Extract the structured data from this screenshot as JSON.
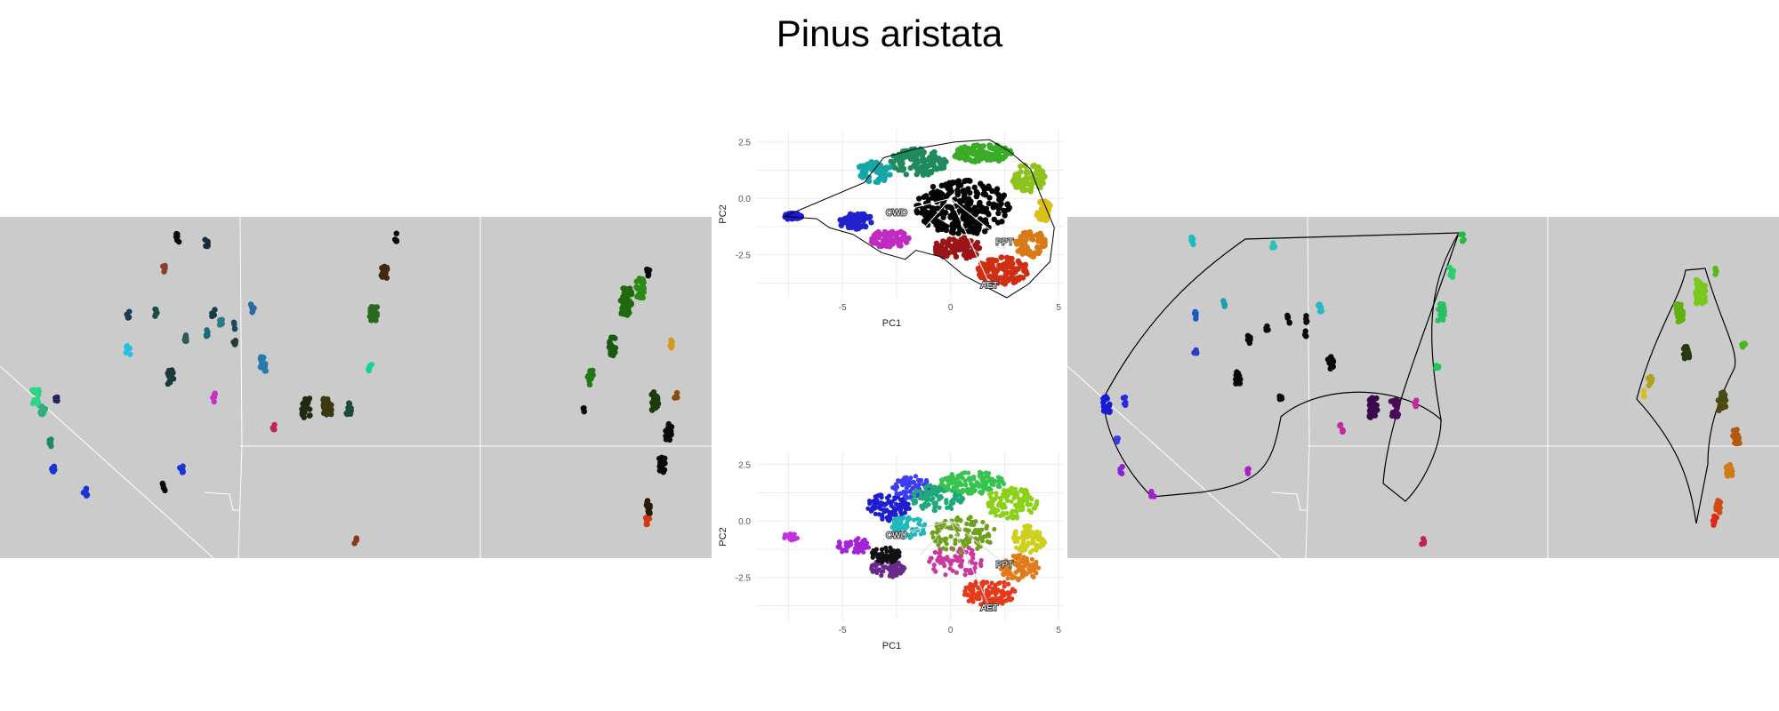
{
  "title": "Pinus aristata",
  "chart_data": [
    {
      "type": "scatter",
      "panel": "pca-biplot-top",
      "title": "",
      "xlabel": "PC1",
      "ylabel": "PC2",
      "xlim": [
        -9,
        5.2
      ],
      "ylim": [
        -4.4,
        3.0
      ],
      "x_ticks": [
        "-5",
        "0",
        "5"
      ],
      "y_ticks": [
        "2.5",
        "0.0",
        "-2.5"
      ],
      "x_tick_values": [
        -5,
        0,
        5
      ],
      "y_tick_values": [
        2.5,
        0.0,
        -2.5
      ],
      "grid": true,
      "loadings": [
        {
          "label": "CWD",
          "x": -2.5,
          "y": -0.6
        },
        {
          "label": "PPT",
          "x": 2.5,
          "y": -1.9
        },
        {
          "label": "AET",
          "x": 1.8,
          "y": -3.8
        },
        {
          "label": "",
          "x": -1.4,
          "y": -1.5
        }
      ],
      "hull_points": [
        [
          -7.7,
          -0.8
        ],
        [
          -6.2,
          -0.9
        ],
        [
          -5.6,
          -1.3
        ],
        [
          -4.5,
          -1.6
        ],
        [
          -3.2,
          -2.4
        ],
        [
          -2.1,
          -2.7
        ],
        [
          -1.6,
          -2.3
        ],
        [
          -0.4,
          -2.6
        ],
        [
          0.6,
          -3.4
        ],
        [
          1.4,
          -3.8
        ],
        [
          2.6,
          -4.4
        ],
        [
          3.6,
          -3.8
        ],
        [
          4.6,
          -2.8
        ],
        [
          4.8,
          -1.3
        ],
        [
          4.1,
          0.3
        ],
        [
          3.7,
          1.3
        ],
        [
          2.7,
          2.1
        ],
        [
          1.8,
          2.6
        ],
        [
          0.2,
          2.5
        ],
        [
          -1.6,
          2.2
        ],
        [
          -3.1,
          1.8
        ],
        [
          -4.0,
          0.7
        ]
      ],
      "clusters": [
        {
          "cx": -7.3,
          "cy": -0.8,
          "rx": 0.4,
          "ry": 0.15,
          "color": "#1b1bd6",
          "n": 30
        },
        {
          "cx": -4.4,
          "cy": -1.0,
          "rx": 0.8,
          "ry": 0.35,
          "color": "#2222cc",
          "n": 60
        },
        {
          "cx": -2.8,
          "cy": -1.8,
          "rx": 0.9,
          "ry": 0.4,
          "color": "#c22bc2",
          "n": 60
        },
        {
          "cx": -3.5,
          "cy": 1.2,
          "rx": 0.8,
          "ry": 0.5,
          "color": "#16a6a6",
          "n": 60
        },
        {
          "cx": -1.5,
          "cy": 1.6,
          "rx": 1.3,
          "ry": 0.6,
          "color": "#1e8a5e",
          "n": 110
        },
        {
          "cx": 1.5,
          "cy": 2.0,
          "rx": 1.4,
          "ry": 0.4,
          "color": "#3bab28",
          "n": 110
        },
        {
          "cx": 3.6,
          "cy": 0.9,
          "rx": 0.8,
          "ry": 0.6,
          "color": "#8ec21e",
          "n": 70
        },
        {
          "cx": 4.3,
          "cy": -0.6,
          "rx": 0.4,
          "ry": 0.5,
          "color": "#d9c11a",
          "n": 40
        },
        {
          "cx": 3.7,
          "cy": -2.0,
          "rx": 0.7,
          "ry": 0.6,
          "color": "#d77a17",
          "n": 60
        },
        {
          "cx": 2.4,
          "cy": -3.2,
          "rx": 1.2,
          "ry": 0.6,
          "color": "#cf2e14",
          "n": 100
        },
        {
          "cx": 0.3,
          "cy": -2.2,
          "rx": 1.1,
          "ry": 0.5,
          "color": "#9a1616",
          "n": 80
        },
        {
          "cx": 0.6,
          "cy": -0.4,
          "rx": 2.2,
          "ry": 1.2,
          "color": "#050505",
          "n": 260
        }
      ]
    },
    {
      "type": "scatter",
      "panel": "pca-biplot-bottom",
      "title": "",
      "xlabel": "PC1",
      "ylabel": "PC2",
      "xlim": [
        -9,
        5.2
      ],
      "ylim": [
        -4.4,
        3.0
      ],
      "x_ticks": [
        "-5",
        "0",
        "5"
      ],
      "y_ticks": [
        "2.5",
        "0.0",
        "-2.5"
      ],
      "x_tick_values": [
        -5,
        0,
        5
      ],
      "y_tick_values": [
        2.5,
        0.0,
        -2.5
      ],
      "grid": true,
      "loadings": [
        {
          "label": "CWD",
          "x": -2.5,
          "y": -0.6
        },
        {
          "label": "PPT",
          "x": 2.5,
          "y": -1.9
        },
        {
          "label": "AET",
          "x": 1.8,
          "y": -3.8
        },
        {
          "label": "",
          "x": -1.4,
          "y": -1.5
        }
      ],
      "clusters": [
        {
          "cx": -7.4,
          "cy": -0.7,
          "rx": 0.4,
          "ry": 0.15,
          "color": "#c233e0",
          "n": 30
        },
        {
          "cx": -4.5,
          "cy": -1.1,
          "rx": 0.8,
          "ry": 0.35,
          "color": "#a324d8",
          "n": 60
        },
        {
          "cx": -2.9,
          "cy": -2.1,
          "rx": 0.8,
          "ry": 0.4,
          "color": "#6a2a8a",
          "n": 60
        },
        {
          "cx": -3.0,
          "cy": -1.5,
          "rx": 0.7,
          "ry": 0.35,
          "color": "#111111",
          "n": 60
        },
        {
          "cx": -2.9,
          "cy": 0.6,
          "rx": 1.0,
          "ry": 0.6,
          "color": "#1e1ecf",
          "n": 90
        },
        {
          "cx": -1.8,
          "cy": 1.5,
          "rx": 0.9,
          "ry": 0.5,
          "color": "#3c3cf0",
          "n": 70
        },
        {
          "cx": -2.0,
          "cy": -0.3,
          "rx": 0.9,
          "ry": 0.5,
          "color": "#20b8b8",
          "n": 70
        },
        {
          "cx": -0.6,
          "cy": 1.0,
          "rx": 1.2,
          "ry": 0.6,
          "color": "#1fa87a",
          "n": 100
        },
        {
          "cx": 1.0,
          "cy": 1.7,
          "rx": 1.5,
          "ry": 0.5,
          "color": "#37c44e",
          "n": 120
        },
        {
          "cx": 2.8,
          "cy": 0.8,
          "rx": 1.2,
          "ry": 0.7,
          "color": "#8bd11a",
          "n": 120
        },
        {
          "cx": 3.6,
          "cy": -0.8,
          "rx": 0.8,
          "ry": 0.6,
          "color": "#cdd01d",
          "n": 80
        },
        {
          "cx": 3.2,
          "cy": -2.1,
          "rx": 0.9,
          "ry": 0.6,
          "color": "#e07a1c",
          "n": 90
        },
        {
          "cx": 1.8,
          "cy": -3.2,
          "rx": 1.2,
          "ry": 0.6,
          "color": "#e63a1d",
          "n": 110
        },
        {
          "cx": 0.2,
          "cy": -1.8,
          "rx": 1.3,
          "ry": 0.7,
          "color": "#c83a9e",
          "n": 70
        },
        {
          "cx": 0.6,
          "cy": -0.6,
          "rx": 1.5,
          "ry": 0.8,
          "color": "#6fa01e",
          "n": 100
        }
      ]
    }
  ],
  "maps": {
    "left": {
      "land_color": "#cbcbcb",
      "border_color": "#ffffff",
      "points": [
        {
          "x": 0.05,
          "y": 0.53,
          "c": "#2fd488",
          "s": 1.8
        },
        {
          "x": 0.06,
          "y": 0.57,
          "c": "#2fb07a",
          "s": 1.4
        },
        {
          "x": 0.08,
          "y": 0.54,
          "c": "#1d2a5a",
          "s": 1.0
        },
        {
          "x": 0.07,
          "y": 0.66,
          "c": "#1a8a6a",
          "s": 0.9
        },
        {
          "x": 0.075,
          "y": 0.74,
          "c": "#1a35d4",
          "s": 1.1
        },
        {
          "x": 0.12,
          "y": 0.81,
          "c": "#1a35d4",
          "s": 1.1
        },
        {
          "x": 0.25,
          "y": 0.06,
          "c": "#0a0a0a",
          "s": 1.0
        },
        {
          "x": 0.29,
          "y": 0.08,
          "c": "#1a2a3a",
          "s": 1.0
        },
        {
          "x": 0.23,
          "y": 0.15,
          "c": "#8a3f2a",
          "s": 0.9
        },
        {
          "x": 0.18,
          "y": 0.29,
          "c": "#1a3a55",
          "s": 0.9
        },
        {
          "x": 0.22,
          "y": 0.28,
          "c": "#1a4a4a",
          "s": 0.9
        },
        {
          "x": 0.18,
          "y": 0.39,
          "c": "#24c0e0",
          "s": 1.1
        },
        {
          "x": 0.26,
          "y": 0.36,
          "c": "#2a5a5a",
          "s": 1.0
        },
        {
          "x": 0.29,
          "y": 0.34,
          "c": "#1a6a7a",
          "s": 0.9
        },
        {
          "x": 0.31,
          "y": 0.31,
          "c": "#2a7a8a",
          "s": 1.0
        },
        {
          "x": 0.3,
          "y": 0.28,
          "c": "#1a3a4a",
          "s": 0.9
        },
        {
          "x": 0.33,
          "y": 0.32,
          "c": "#1a4a5a",
          "s": 0.8
        },
        {
          "x": 0.33,
          "y": 0.37,
          "c": "#223a3a",
          "s": 0.8
        },
        {
          "x": 0.24,
          "y": 0.47,
          "c": "#1a3a3a",
          "s": 1.6
        },
        {
          "x": 0.355,
          "y": 0.27,
          "c": "#2a6aa0",
          "s": 1.1
        },
        {
          "x": 0.37,
          "y": 0.43,
          "c": "#2a7ab0",
          "s": 1.6
        },
        {
          "x": 0.3,
          "y": 0.53,
          "c": "#c233c2",
          "s": 1.0
        },
        {
          "x": 0.255,
          "y": 0.74,
          "c": "#1a35d4",
          "s": 1.0
        },
        {
          "x": 0.23,
          "y": 0.79,
          "c": "#0a0a0a",
          "s": 0.9
        },
        {
          "x": 0.385,
          "y": 0.62,
          "c": "#c22260",
          "s": 0.9
        },
        {
          "x": 0.43,
          "y": 0.56,
          "c": "#202a10",
          "s": 2.2
        },
        {
          "x": 0.46,
          "y": 0.56,
          "c": "#3a3a10",
          "s": 2.2
        },
        {
          "x": 0.49,
          "y": 0.56,
          "c": "#1a4a3a",
          "s": 1.4
        },
        {
          "x": 0.52,
          "y": 0.44,
          "c": "#1ad0a0",
          "s": 0.9
        },
        {
          "x": 0.525,
          "y": 0.28,
          "c": "#2a6a20",
          "s": 2.0
        },
        {
          "x": 0.54,
          "y": 0.16,
          "c": "#402a10",
          "s": 1.6
        },
        {
          "x": 0.555,
          "y": 0.06,
          "c": "#0a0a0a",
          "s": 1.0
        },
        {
          "x": 0.5,
          "y": 0.95,
          "c": "#8a3a1a",
          "s": 0.8
        },
        {
          "x": 0.88,
          "y": 0.25,
          "c": "#1f6a10",
          "s": 3.0
        },
        {
          "x": 0.9,
          "y": 0.21,
          "c": "#2a8a15",
          "s": 2.2
        },
        {
          "x": 0.86,
          "y": 0.38,
          "c": "#1a5a10",
          "s": 2.0
        },
        {
          "x": 0.83,
          "y": 0.47,
          "c": "#1f7a15",
          "s": 1.6
        },
        {
          "x": 0.91,
          "y": 0.16,
          "c": "#0a0a0a",
          "s": 1.0
        },
        {
          "x": 0.945,
          "y": 0.37,
          "c": "#d49a1a",
          "s": 1.1
        },
        {
          "x": 0.92,
          "y": 0.54,
          "c": "#1a3a10",
          "s": 2.0
        },
        {
          "x": 0.94,
          "y": 0.63,
          "c": "#0a0a0a",
          "s": 1.8
        },
        {
          "x": 0.93,
          "y": 0.73,
          "c": "#0a0a0a",
          "s": 1.8
        },
        {
          "x": 0.91,
          "y": 0.85,
          "c": "#2a1a0a",
          "s": 1.4
        },
        {
          "x": 0.91,
          "y": 0.89,
          "c": "#d23a14",
          "s": 1.0
        },
        {
          "x": 0.82,
          "y": 0.56,
          "c": "#0a0a0a",
          "s": 0.8
        },
        {
          "x": 0.95,
          "y": 0.52,
          "c": "#8a4a10",
          "s": 0.8
        }
      ]
    },
    "right": {
      "land_color": "#cbcbcb",
      "border_color": "#ffffff",
      "points": [
        {
          "x": 0.055,
          "y": 0.55,
          "c": "#1a1ad6",
          "s": 1.8
        },
        {
          "x": 0.08,
          "y": 0.54,
          "c": "#2a2ae0",
          "s": 0.9
        },
        {
          "x": 0.07,
          "y": 0.66,
          "c": "#3a3ae0",
          "s": 0.8
        },
        {
          "x": 0.075,
          "y": 0.74,
          "c": "#8a22d6",
          "s": 0.9
        },
        {
          "x": 0.12,
          "y": 0.81,
          "c": "#a122c2",
          "s": 0.9
        },
        {
          "x": 0.175,
          "y": 0.07,
          "c": "#1abdbd",
          "s": 0.9
        },
        {
          "x": 0.29,
          "y": 0.08,
          "c": "#2ac0c0",
          "s": 0.9
        },
        {
          "x": 0.18,
          "y": 0.29,
          "c": "#1a5ac0",
          "s": 0.9
        },
        {
          "x": 0.22,
          "y": 0.25,
          "c": "#1aa0b0",
          "s": 0.9
        },
        {
          "x": 0.18,
          "y": 0.39,
          "c": "#2a3ad0",
          "s": 0.9
        },
        {
          "x": 0.255,
          "y": 0.36,
          "c": "#0a0a0a",
          "s": 1.0
        },
        {
          "x": 0.28,
          "y": 0.33,
          "c": "#0a0a0a",
          "s": 0.8
        },
        {
          "x": 0.31,
          "y": 0.3,
          "c": "#0a0a0a",
          "s": 0.9
        },
        {
          "x": 0.335,
          "y": 0.3,
          "c": "#0a0a0a",
          "s": 0.8
        },
        {
          "x": 0.335,
          "y": 0.34,
          "c": "#0a0a0a",
          "s": 0.8
        },
        {
          "x": 0.24,
          "y": 0.47,
          "c": "#0a0a0a",
          "s": 1.4
        },
        {
          "x": 0.355,
          "y": 0.27,
          "c": "#2ab8c8",
          "s": 1.0
        },
        {
          "x": 0.37,
          "y": 0.43,
          "c": "#0a0a0a",
          "s": 1.6
        },
        {
          "x": 0.3,
          "y": 0.53,
          "c": "#0a0a0a",
          "s": 0.8
        },
        {
          "x": 0.255,
          "y": 0.74,
          "c": "#a822c8",
          "s": 0.9
        },
        {
          "x": 0.385,
          "y": 0.62,
          "c": "#c22aa0",
          "s": 0.9
        },
        {
          "x": 0.43,
          "y": 0.56,
          "c": "#3a0a4a",
          "s": 2.2
        },
        {
          "x": 0.46,
          "y": 0.56,
          "c": "#4a0a5a",
          "s": 2.0
        },
        {
          "x": 0.49,
          "y": 0.55,
          "c": "#c22aa0",
          "s": 0.9
        },
        {
          "x": 0.52,
          "y": 0.44,
          "c": "#22c85a",
          "s": 0.8
        },
        {
          "x": 0.525,
          "y": 0.28,
          "c": "#2ac062",
          "s": 1.8
        },
        {
          "x": 0.54,
          "y": 0.16,
          "c": "#2ad070",
          "s": 1.2
        },
        {
          "x": 0.555,
          "y": 0.06,
          "c": "#22b84a",
          "s": 0.9
        },
        {
          "x": 0.5,
          "y": 0.95,
          "c": "#c22060",
          "s": 0.8
        },
        {
          "x": 0.89,
          "y": 0.22,
          "c": "#7ac81a",
          "s": 2.6
        },
        {
          "x": 0.86,
          "y": 0.28,
          "c": "#62b012",
          "s": 2.0
        },
        {
          "x": 0.87,
          "y": 0.4,
          "c": "#2a3a10",
          "s": 1.6
        },
        {
          "x": 0.82,
          "y": 0.48,
          "c": "#b0a21a",
          "s": 1.4
        },
        {
          "x": 0.81,
          "y": 0.52,
          "c": "#d4c01a",
          "s": 0.8
        },
        {
          "x": 0.92,
          "y": 0.54,
          "c": "#4a4a12",
          "s": 2.0
        },
        {
          "x": 0.95,
          "y": 0.38,
          "c": "#4ab81a",
          "s": 1.0
        },
        {
          "x": 0.94,
          "y": 0.64,
          "c": "#b05a12",
          "s": 1.8
        },
        {
          "x": 0.93,
          "y": 0.74,
          "c": "#d07a14",
          "s": 1.6
        },
        {
          "x": 0.915,
          "y": 0.85,
          "c": "#d04a14",
          "s": 1.4
        },
        {
          "x": 0.91,
          "y": 0.89,
          "c": "#e02a14",
          "s": 1.0
        },
        {
          "x": 0.91,
          "y": 0.16,
          "c": "#5ab81a",
          "s": 0.8
        }
      ]
    }
  }
}
